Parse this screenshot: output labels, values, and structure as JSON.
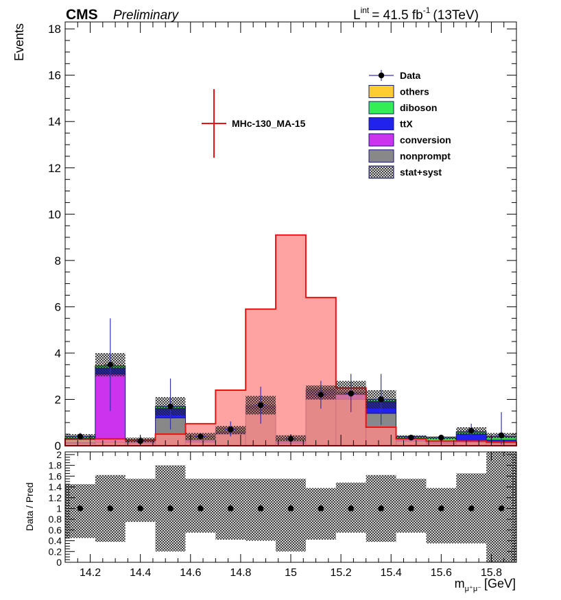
{
  "header": {
    "experiment": "CMS",
    "status": "Preliminary",
    "lumi_prefix": "L",
    "lumi_sup": "int",
    "lumi_value": "= 41.5 fb",
    "lumi_exp": "-1",
    "lumi_energy": "(13TeV)"
  },
  "colors": {
    "others": "#ffcc33",
    "diboson": "#33ee55",
    "ttX": "#2222ee",
    "conversion": "#cc33ee",
    "nonprompt": "#888888",
    "signal_fill": "#ff8888",
    "signal_line": "#ee1111",
    "data": "#000000",
    "data_errors": "#3333aa"
  },
  "chart_data": {
    "type": "bar",
    "stacked": true,
    "title": "",
    "xlabel": "m",
    "xlabel_sub": "μ⁺μ⁻",
    "xlabel_unit": "[GeV]",
    "ylabel": "Events",
    "ratio_ylabel": "Data / Pred",
    "xlim": [
      14.1,
      15.9
    ],
    "ylim": [
      0,
      18.3
    ],
    "ratio_ylim": [
      0,
      2.05
    ],
    "x_ticks": [
      14.2,
      14.4,
      14.6,
      14.8,
      15.0,
      15.2,
      15.4,
      15.6,
      15.8
    ],
    "x_tick_labels": [
      "14.2",
      "14.4",
      "14.6",
      "14.8",
      "15",
      "15.2",
      "15.4",
      "15.6",
      "15.8"
    ],
    "y_ticks": [
      0,
      2,
      4,
      6,
      8,
      10,
      12,
      14,
      16,
      18
    ],
    "y_tick_labels": [
      "0",
      "2",
      "4",
      "6",
      "8",
      "10",
      "12",
      "14",
      "16",
      "18"
    ],
    "ratio_ticks": [
      0,
      0.2,
      0.4,
      0.6,
      0.8,
      1,
      1.2,
      1.4,
      1.6,
      1.8,
      2
    ],
    "ratio_tick_labels": [
      "0",
      "0.2",
      "0.4",
      "0.6",
      "0.8",
      "1",
      "1.2",
      "1.4",
      "1.6",
      "1.8",
      "2"
    ],
    "bin_edges": [
      14.1,
      14.22,
      14.34,
      14.46,
      14.58,
      14.7,
      14.82,
      14.94,
      15.06,
      15.18,
      15.3,
      15.42,
      15.54,
      15.66,
      15.78,
      15.9
    ],
    "series": [
      {
        "name": "nonprompt",
        "values": [
          0.1,
          0.15,
          0.1,
          1.2,
          0.15,
          0.5,
          1.6,
          0.1,
          2.0,
          2.0,
          1.4,
          0.2,
          0.1,
          0.15,
          0.1
        ]
      },
      {
        "name": "conversion",
        "values": [
          0.0,
          2.95,
          0.0,
          0.0,
          0.0,
          0.0,
          0.0,
          0.0,
          0.2,
          0.0,
          0.0,
          0.0,
          0.0,
          0.0,
          0.0
        ]
      },
      {
        "name": "ttX",
        "values": [
          0.05,
          0.25,
          0.1,
          0.4,
          0.1,
          0.1,
          0.1,
          0.1,
          0.2,
          0.25,
          0.5,
          0.1,
          0.1,
          0.35,
          0.15
        ]
      },
      {
        "name": "diboson",
        "values": [
          0.25,
          0.1,
          0.05,
          0.1,
          0.15,
          0.15,
          0.05,
          0.1,
          0.05,
          0.05,
          0.1,
          0.1,
          0.15,
          0.1,
          0.15
        ]
      },
      {
        "name": "others",
        "values": [
          0.0,
          0.0,
          0.0,
          0.0,
          0.0,
          0.0,
          0.0,
          0.0,
          0.0,
          0.0,
          0.0,
          0.0,
          0.0,
          0.0,
          0.0
        ]
      }
    ],
    "uncertainty": {
      "name": "stat+syst",
      "up": [
        0.5,
        4.0,
        0.35,
        2.1,
        0.55,
        0.85,
        2.15,
        0.45,
        2.6,
        2.8,
        2.4,
        0.45,
        0.4,
        0.8,
        0.55
      ],
      "down": [
        0.25,
        3.0,
        0.15,
        1.3,
        0.25,
        0.5,
        1.35,
        0.2,
        2.0,
        2.2,
        1.6,
        0.3,
        0.28,
        0.5,
        0.32
      ]
    },
    "signal": {
      "name": "MHc-130_MA-15",
      "values": [
        0.3,
        0.3,
        0.25,
        0.5,
        0.95,
        2.4,
        5.9,
        9.1,
        6.4,
        2.5,
        0.8,
        0.3,
        0.2,
        0.2,
        0.15
      ]
    },
    "data": {
      "name": "Data",
      "x": [
        14.16,
        14.28,
        14.4,
        14.52,
        14.64,
        14.76,
        14.88,
        15.0,
        15.12,
        15.24,
        15.36,
        15.48,
        15.6,
        15.72,
        15.84
      ],
      "y": [
        0.4,
        3.5,
        0.2,
        1.7,
        0.4,
        0.7,
        1.75,
        0.3,
        2.2,
        2.25,
        2.0,
        0.35,
        0.35,
        0.65,
        0.45
      ],
      "err_up": [
        0.15,
        2.0,
        0.2,
        1.2,
        0.15,
        0.35,
        0.8,
        0.2,
        0.6,
        0.85,
        1.1,
        0.1,
        0.1,
        0.3,
        1.0
      ],
      "err_down": [
        0.1,
        2.0,
        0.15,
        1.0,
        0.1,
        0.3,
        0.8,
        0.1,
        0.6,
        0.8,
        1.1,
        0.05,
        0.05,
        0.2,
        0.4
      ]
    },
    "ratio": {
      "values": [
        1,
        1,
        1,
        1,
        1,
        1,
        1,
        1,
        1,
        1,
        1,
        1,
        1,
        1,
        1
      ],
      "band_up": [
        1.45,
        1.62,
        1.55,
        1.8,
        1.55,
        1.55,
        1.55,
        1.55,
        1.38,
        1.48,
        1.62,
        1.55,
        1.38,
        1.65,
        2.05
      ],
      "band_down": [
        0.45,
        0.38,
        0.75,
        0.2,
        0.55,
        0.42,
        0.4,
        0.2,
        0.42,
        0.55,
        0.38,
        0.55,
        0.35,
        0.35,
        0.0
      ]
    },
    "legend": {
      "placement": "top-right",
      "entries": [
        "Data",
        "others",
        "diboson",
        "ttX",
        "conversion",
        "nonprompt",
        "stat+syst"
      ],
      "signal_entry": "MHc-130_MA-15"
    }
  }
}
